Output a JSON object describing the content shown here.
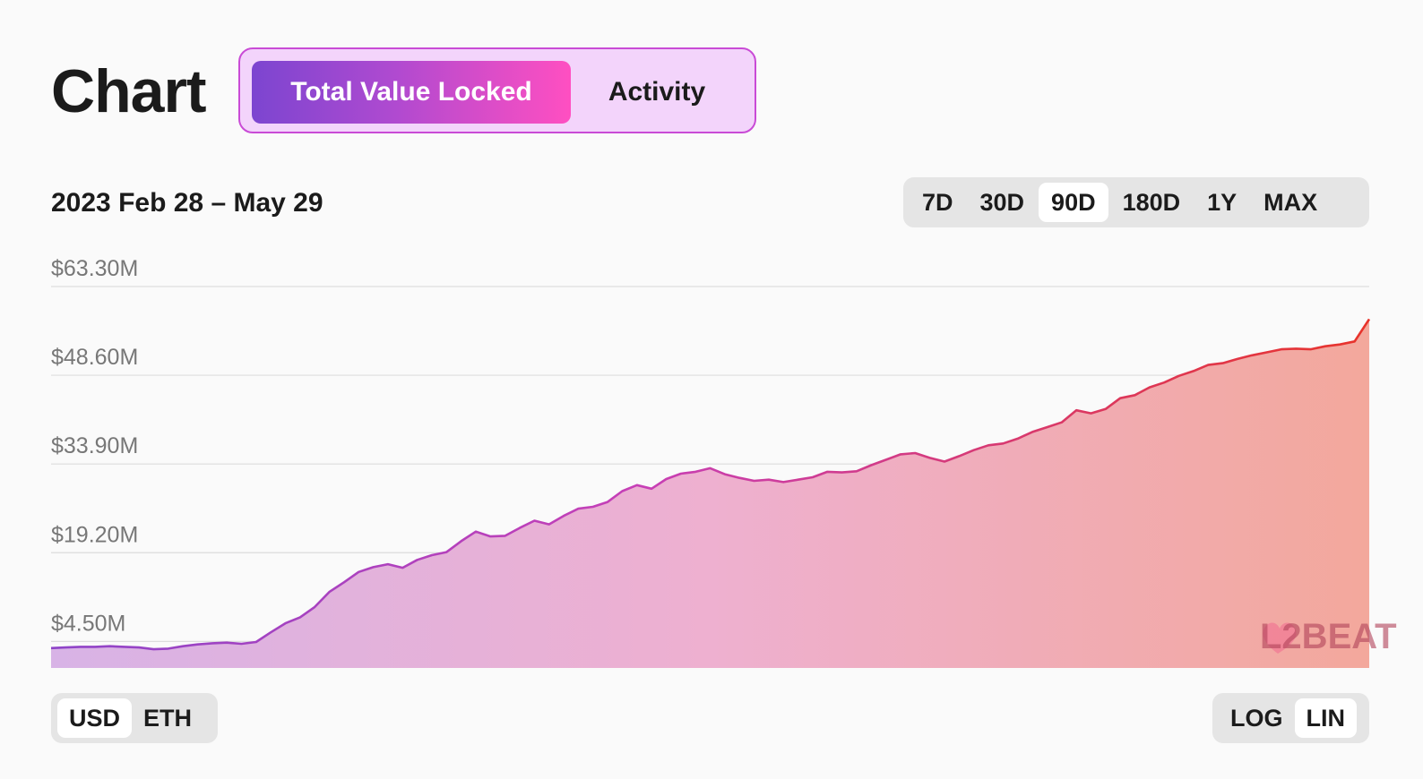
{
  "header": {
    "title": "Chart"
  },
  "tabs": [
    {
      "label": "Total Value Locked",
      "active": true
    },
    {
      "label": "Activity",
      "active": false
    }
  ],
  "date_range": "2023 Feb 28 – May 29",
  "range_buttons": [
    {
      "label": "7D",
      "active": false
    },
    {
      "label": "30D",
      "active": false
    },
    {
      "label": "90D",
      "active": true
    },
    {
      "label": "180D",
      "active": false
    },
    {
      "label": "1Y",
      "active": false
    },
    {
      "label": "MAX",
      "active": false
    }
  ],
  "currency_toggle": [
    {
      "label": "USD",
      "active": true
    },
    {
      "label": "ETH",
      "active": false
    }
  ],
  "scale_toggle": [
    {
      "label": "LOG",
      "active": false
    },
    {
      "label": "LIN",
      "active": true
    }
  ],
  "watermark": "L2BEAT",
  "colors": {
    "accent_start": "#7c45d0",
    "accent_end": "#ff4fc1",
    "line_start": "#8e44c8",
    "line_end": "#e8332a",
    "fill_start": "#d8b3e6",
    "fill_end": "#f3a89c"
  },
  "chart_data": {
    "type": "area",
    "title": "",
    "xlabel": "",
    "ylabel": "",
    "x_start": "2023-02-28",
    "x_end": "2023-05-29",
    "ylim": [
      0.1,
      63.3
    ],
    "yticks": [
      "$63.30M",
      "$48.60M",
      "$33.90M",
      "$19.20M",
      "$4.50M"
    ],
    "ytick_values": [
      63.3,
      48.6,
      33.9,
      19.2,
      4.5
    ],
    "y_unit": "USD millions",
    "grid": true,
    "legend": "none",
    "series": [
      {
        "values": [
          3.4,
          3.5,
          3.6,
          3.6,
          3.7,
          3.6,
          3.5,
          3.2,
          3.3,
          3.7,
          4.0,
          4.2,
          4.3,
          4.1,
          4.4,
          6.0,
          7.5,
          8.5,
          10.2,
          12.7,
          14.3,
          16.0,
          16.8,
          17.3,
          16.7,
          18.0,
          18.8,
          19.3,
          21.1,
          22.7,
          21.9,
          22.0,
          23.3,
          24.5,
          23.9,
          25.3,
          26.5,
          26.8,
          27.6,
          29.4,
          30.4,
          29.8,
          31.4,
          32.3,
          32.6,
          33.2,
          32.2,
          31.6,
          31.1,
          31.3,
          30.9,
          31.3,
          31.7,
          32.6,
          32.5,
          32.7,
          33.7,
          34.6,
          35.5,
          35.7,
          34.9,
          34.3,
          35.2,
          36.2,
          37.0,
          37.3,
          38.1,
          39.2,
          40.0,
          40.8,
          42.8,
          42.3,
          43.0,
          44.8,
          45.3,
          46.6,
          47.4,
          48.5,
          49.3,
          50.3,
          50.6,
          51.3,
          51.9,
          52.4,
          52.9,
          53.0,
          52.9,
          53.4,
          53.7,
          54.2,
          57.9
        ]
      }
    ]
  }
}
